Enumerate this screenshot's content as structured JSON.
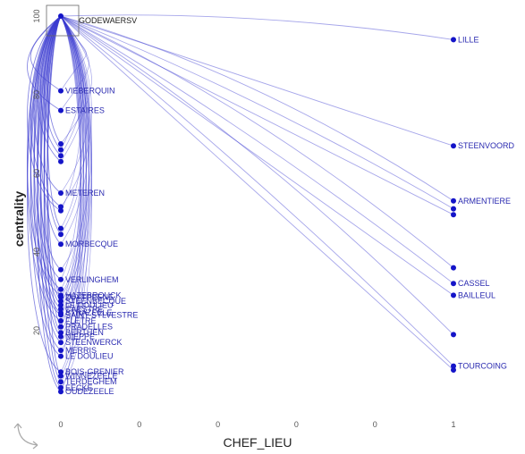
{
  "chart_data": {
    "type": "scatter",
    "xlabel": "CHEF_LIEU",
    "ylabel": "centrality",
    "x_ticks": [
      "0",
      "0",
      "0",
      "0",
      "0",
      "1"
    ],
    "y_ticks": [
      "20",
      "40",
      "60",
      "80",
      "100"
    ],
    "ylim": [
      0,
      100
    ],
    "focus_label": "GODEWAERSV",
    "points": [
      {
        "x": 0,
        "y": 100,
        "label": "GODEWAERSV",
        "hub": true
      },
      {
        "x": 1,
        "y": 94,
        "label": "LILLE"
      },
      {
        "x": 1,
        "y": 67,
        "label": "STEENVOORD"
      },
      {
        "x": 1,
        "y": 53,
        "label": "ARMENTIERE"
      },
      {
        "x": 1,
        "y": 51,
        "label": ""
      },
      {
        "x": 1,
        "y": 49.5,
        "label": ""
      },
      {
        "x": 1,
        "y": 36,
        "label": ""
      },
      {
        "x": 1,
        "y": 32,
        "label": "CASSEL"
      },
      {
        "x": 1,
        "y": 29,
        "label": "BAILLEUL"
      },
      {
        "x": 1,
        "y": 19,
        "label": ""
      },
      {
        "x": 1,
        "y": 11,
        "label": "TOURCOING"
      },
      {
        "x": 1,
        "y": 10,
        "label": ""
      },
      {
        "x": 0,
        "y": 81,
        "label": "VIEBERQUIN"
      },
      {
        "x": 0,
        "y": 76,
        "label": "ESTAIRES"
      },
      {
        "x": 0,
        "y": 67.5,
        "label": ""
      },
      {
        "x": 0,
        "y": 66,
        "label": ""
      },
      {
        "x": 0,
        "y": 64.5,
        "label": ""
      },
      {
        "x": 0,
        "y": 63,
        "label": ""
      },
      {
        "x": 0,
        "y": 55,
        "label": "METEREN"
      },
      {
        "x": 0,
        "y": 51.5,
        "label": ""
      },
      {
        "x": 0,
        "y": 50.5,
        "label": ""
      },
      {
        "x": 0,
        "y": 46,
        "label": ""
      },
      {
        "x": 0,
        "y": 44.5,
        "label": ""
      },
      {
        "x": 0,
        "y": 42,
        "label": "MORBECQUE"
      },
      {
        "x": 0,
        "y": 35.5,
        "label": ""
      },
      {
        "x": 0,
        "y": 33,
        "label": "VERLINGHEM"
      },
      {
        "x": 0,
        "y": 30.5,
        "label": ""
      },
      {
        "x": 0,
        "y": 29,
        "label": "HAZEBROUCK"
      },
      {
        "x": 0,
        "y": 28.5,
        "label": "ZUYTPEENE"
      },
      {
        "x": 0,
        "y": 27.5,
        "label": "STEENBECQUE"
      },
      {
        "x": 0,
        "y": 26.5,
        "label": "LE DOULIEU"
      },
      {
        "x": 0,
        "y": 25.5,
        "label": "CAESTRE"
      },
      {
        "x": 0,
        "y": 24.5,
        "label": "STRAZEELE"
      },
      {
        "x": 0,
        "y": 24,
        "label": "SAINT-SYLVESTRE"
      },
      {
        "x": 0,
        "y": 22.5,
        "label": "FLETRE"
      },
      {
        "x": 0,
        "y": 21,
        "label": "PRADELLES"
      },
      {
        "x": 0,
        "y": 19.5,
        "label": "BERTHEN"
      },
      {
        "x": 0,
        "y": 18.5,
        "label": "NIEPPE"
      },
      {
        "x": 0,
        "y": 17,
        "label": "STEENWERCK"
      },
      {
        "x": 0,
        "y": 15,
        "label": "MERRIS"
      },
      {
        "x": 0,
        "y": 13.5,
        "label": "LE DOULIEU"
      },
      {
        "x": 0,
        "y": 9.5,
        "label": "BOIS-GRENIER"
      },
      {
        "x": 0,
        "y": 8.5,
        "label": "WINNEZEELE"
      },
      {
        "x": 0,
        "y": 7,
        "label": "TERDEGHEM"
      },
      {
        "x": 0,
        "y": 5.5,
        "label": "EECKE"
      },
      {
        "x": 0,
        "y": 4.5,
        "label": "OUDEZEELE"
      }
    ],
    "grid": false,
    "legend": "none"
  }
}
